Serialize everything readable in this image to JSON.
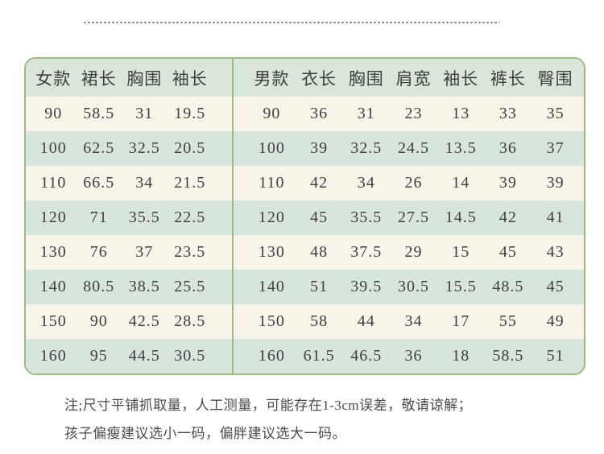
{
  "style": {
    "border_color": "#9cba82",
    "header_bg": "#d9e6d9",
    "row_cream": "#f8f4e9",
    "row_teal": "#d7e5dc",
    "text_color": "#3f3f3f"
  },
  "chart_data": [
    {
      "type": "table",
      "name": "women",
      "columns": [
        "女款",
        "裙长",
        "胸围",
        "袖长"
      ],
      "rows": [
        [
          "90",
          "58.5",
          "31",
          "19.5"
        ],
        [
          "100",
          "62.5",
          "32.5",
          "20.5"
        ],
        [
          "110",
          "66.5",
          "34",
          "21.5"
        ],
        [
          "120",
          "71",
          "35.5",
          "22.5"
        ],
        [
          "130",
          "76",
          "37",
          "23.5"
        ],
        [
          "140",
          "80.5",
          "38.5",
          "25.5"
        ],
        [
          "150",
          "90",
          "42.5",
          "28.5"
        ],
        [
          "160",
          "95",
          "44.5",
          "30.5"
        ]
      ]
    },
    {
      "type": "table",
      "name": "men",
      "columns": [
        "男款",
        "衣长",
        "胸围",
        "肩宽",
        "袖长",
        "裤长",
        "臀围"
      ],
      "rows": [
        [
          "90",
          "36",
          "31",
          "23",
          "13",
          "33",
          "35"
        ],
        [
          "100",
          "39",
          "32.5",
          "24.5",
          "13.5",
          "36",
          "37"
        ],
        [
          "110",
          "42",
          "34",
          "26",
          "14",
          "39",
          "39"
        ],
        [
          "120",
          "45",
          "35.5",
          "27.5",
          "14.5",
          "42",
          "41"
        ],
        [
          "130",
          "48",
          "37.5",
          "29",
          "15",
          "45",
          "43"
        ],
        [
          "140",
          "51",
          "39.5",
          "30.5",
          "15.5",
          "48.5",
          "45"
        ],
        [
          "150",
          "58",
          "44",
          "34",
          "17",
          "55",
          "49"
        ],
        [
          "160",
          "61.5",
          "46.5",
          "36",
          "18",
          "58.5",
          "51"
        ]
      ]
    }
  ],
  "note": {
    "line1": "注;尺寸平铺抓取量，人工测量，可能存在1-3cm误差，敬请谅解；",
    "line2": "孩子偏瘦建议选小一码，偏胖建议选大一码。"
  }
}
